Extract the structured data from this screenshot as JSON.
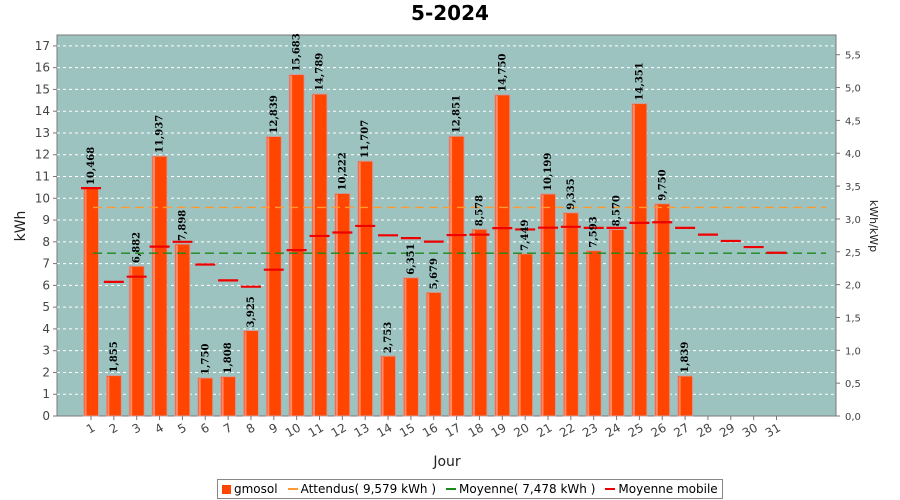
{
  "chart_data": {
    "type": "bar",
    "title": "5-2024",
    "xlabel": "Jour",
    "ylabel": "kWh",
    "y2label": "kWh/kWp",
    "ylim": [
      0,
      17.5
    ],
    "y2lim": [
      0,
      5.8
    ],
    "yticks": [
      "0",
      "1",
      "2",
      "3",
      "4",
      "5",
      "6",
      "7",
      "8",
      "9",
      "10",
      "11",
      "12",
      "13",
      "14",
      "15",
      "16",
      "17"
    ],
    "y2ticks": [
      "0,0",
      "0,5",
      "1,0",
      "1,5",
      "2,0",
      "2,5",
      "3,0",
      "3,5",
      "4,0",
      "4,5",
      "5,0",
      "5,5"
    ],
    "categories": [
      "1",
      "2",
      "3",
      "4",
      "5",
      "6",
      "7",
      "8",
      "9",
      "10",
      "11",
      "12",
      "13",
      "14",
      "15",
      "16",
      "17",
      "18",
      "19",
      "20",
      "21",
      "22",
      "23",
      "24",
      "25",
      "26",
      "27",
      "28",
      "29",
      "30",
      "31"
    ],
    "series": [
      {
        "name": "gmosol",
        "type": "bar",
        "color": "#ff4500",
        "values": [
          10.468,
          1.855,
          6.882,
          11.937,
          7.898,
          1.75,
          1.808,
          3.925,
          12.839,
          15.683,
          14.789,
          10.222,
          11.707,
          2.753,
          6.351,
          5.679,
          12.851,
          8.578,
          14.75,
          7.449,
          10.199,
          9.335,
          7.593,
          8.57,
          14.351,
          9.75,
          1.839,
          null,
          null,
          null,
          null
        ],
        "labels": [
          "10,468",
          "1,855",
          "6,882",
          "11,937",
          "7,898",
          "1,750",
          "1,808",
          "3,925",
          "12,839",
          "15,683",
          "14,789",
          "10,222",
          "11,707",
          "2,753",
          "6,351",
          "5,679",
          "12,851",
          "8,578",
          "14,750",
          "7,449",
          "10,199",
          "9,335",
          "7,593",
          "8,570",
          "14,351",
          "9,750",
          "1,839",
          "",
          "",
          "",
          ""
        ]
      },
      {
        "name": "Attendus( 9,579 kWh )",
        "type": "hline",
        "color": "#ff9933",
        "value": 9.579
      },
      {
        "name": "Moyenne( 7,478 kWh )",
        "type": "hline",
        "color": "#1a8a1a",
        "value": 7.478
      },
      {
        "name": "Moyenne mobile",
        "type": "step",
        "color": "#ee0000",
        "values": [
          10.468,
          6.16,
          6.4,
          7.78,
          8.0,
          6.96,
          6.23,
          5.94,
          6.72,
          7.62,
          8.27,
          8.43,
          8.73,
          8.3,
          8.17,
          8.01,
          8.31,
          8.33,
          8.63,
          8.57,
          8.65,
          8.69,
          8.64,
          8.64,
          8.87,
          8.9,
          8.64,
          8.33,
          8.04,
          7.76,
          7.5
        ]
      }
    ],
    "grid": true
  },
  "legend": {
    "bar_label": "gmosol",
    "expected_label": "Attendus( 9,579 kWh )",
    "average_label": "Moyenne( 7,478 kWh )",
    "moving_label": "Moyenne mobile"
  }
}
